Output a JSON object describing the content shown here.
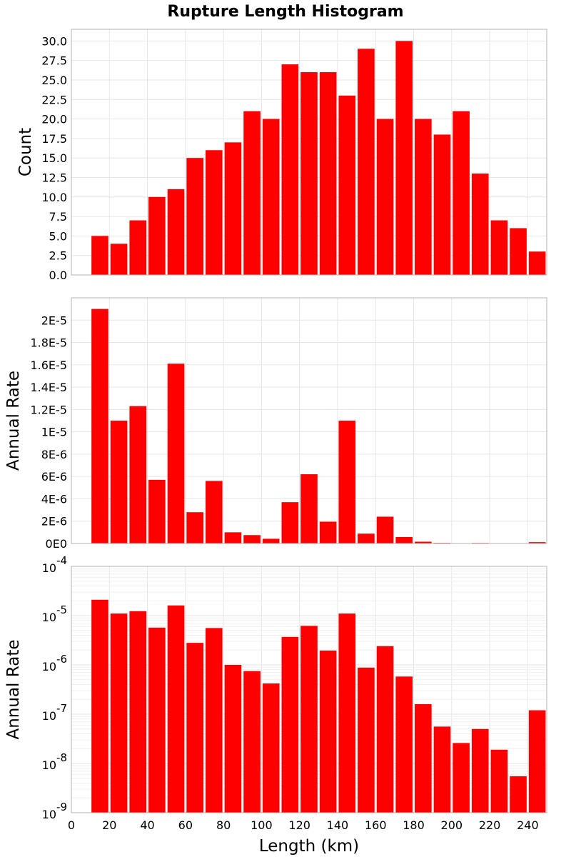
{
  "chart_data": {
    "title": "Rupture Length Histogram",
    "bar_color": "#ff0000",
    "grid": true,
    "x": {
      "label": "Length (km)",
      "lim": [
        0,
        250
      ],
      "ticks": [
        0,
        20,
        40,
        60,
        80,
        100,
        120,
        140,
        160,
        180,
        200,
        220,
        240
      ],
      "tick_labels": [
        "0",
        "20",
        "40",
        "60",
        "80",
        "100",
        "120",
        "140",
        "160",
        "180",
        "200",
        "220",
        "240"
      ]
    },
    "bin_width": 10,
    "bins": [
      10,
      20,
      30,
      40,
      50,
      60,
      70,
      80,
      90,
      100,
      110,
      120,
      130,
      140,
      150,
      160,
      170,
      180,
      190,
      200,
      210,
      220,
      230,
      240
    ],
    "panels": [
      {
        "type": "bar",
        "scale": "linear",
        "ylabel": "Count",
        "ylim": [
          0,
          31.5
        ],
        "yticks": [
          0,
          2.5,
          5,
          7.5,
          10,
          12.5,
          15,
          17.5,
          20,
          22.5,
          25,
          27.5,
          30
        ],
        "ytick_labels": [
          "0.0",
          "2.5",
          "5.0",
          "7.5",
          "10.0",
          "12.5",
          "15.0",
          "17.5",
          "20.0",
          "22.5",
          "25.0",
          "27.5",
          "30.0"
        ],
        "values": [
          5,
          4,
          7,
          10,
          11,
          15,
          16,
          17,
          21,
          20,
          27,
          26,
          26,
          23,
          29,
          20,
          30,
          20,
          18,
          21,
          13,
          7,
          6,
          3
        ]
      },
      {
        "type": "bar",
        "scale": "linear",
        "ylabel": "Annual Rate",
        "ylim": [
          0,
          2.2e-05
        ],
        "yticks": [
          0,
          2e-06,
          4e-06,
          6e-06,
          8e-06,
          1e-05,
          1.2e-05,
          1.4e-05,
          1.6e-05,
          1.8e-05,
          2e-05
        ],
        "ytick_labels": [
          "0E0",
          "2E-6",
          "4E-6",
          "6E-6",
          "8E-6",
          "1E-5",
          "1.2E-5",
          "1.4E-5",
          "1.6E-5",
          "1.8E-5",
          "2E-5"
        ],
        "values": [
          2.1e-05,
          1.1e-05,
          1.23e-05,
          5.7e-06,
          1.61e-05,
          2.8e-06,
          5.6e-06,
          1e-06,
          7.5e-07,
          4.2e-07,
          3.7e-06,
          6.2e-06,
          1.95e-06,
          1.1e-05,
          8.8e-07,
          2.4e-06,
          5.8e-07,
          1.6e-07,
          5.6e-08,
          2.6e-08,
          5e-08,
          1.9e-08,
          5.5e-09,
          1.2e-07
        ]
      },
      {
        "type": "bar",
        "scale": "log",
        "ylabel": "Annual Rate",
        "ylim": [
          1e-09,
          0.0001
        ],
        "yticks": [
          1e-09,
          1e-08,
          1e-07,
          1e-06,
          1e-05,
          0.0001
        ],
        "ytick_labels": [
          {
            "base": "10",
            "exp": "-9"
          },
          {
            "base": "10",
            "exp": "-8"
          },
          {
            "base": "10",
            "exp": "-7"
          },
          {
            "base": "10",
            "exp": "-6"
          },
          {
            "base": "10",
            "exp": "-5"
          },
          {
            "base": "10",
            "exp": "-4"
          }
        ],
        "values": [
          2.1e-05,
          1.1e-05,
          1.23e-05,
          5.7e-06,
          1.61e-05,
          2.8e-06,
          5.6e-06,
          1e-06,
          7.5e-07,
          4.2e-07,
          3.7e-06,
          6.2e-06,
          1.95e-06,
          1.1e-05,
          8.8e-07,
          2.4e-06,
          5.8e-07,
          1.6e-07,
          5.6e-08,
          2.6e-08,
          5e-08,
          1.9e-08,
          5.5e-09,
          1.2e-07
        ]
      }
    ]
  }
}
